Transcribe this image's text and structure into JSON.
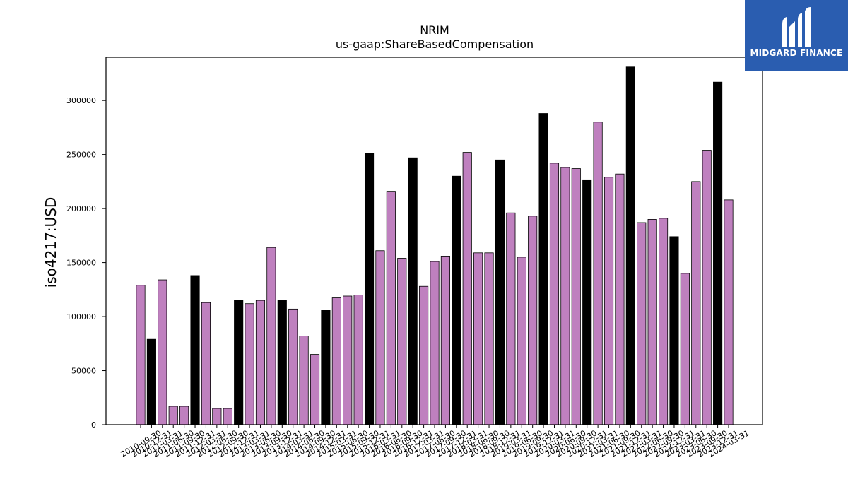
{
  "chart_data": {
    "type": "bar",
    "title": "NRIM",
    "subtitle": "us-gaap:ShareBasedCompensation",
    "ylabel": "iso4217:USD",
    "xlabel": "",
    "ylim": [
      0,
      340000
    ],
    "yticks": [
      0,
      50000,
      100000,
      150000,
      200000,
      250000,
      300000
    ],
    "ytick_labels": [
      "0",
      "50000",
      "100000",
      "150000",
      "200000",
      "250000",
      "300000"
    ],
    "grid": false,
    "colors": {
      "quarter": "#bf80bf",
      "fiscal_year_end": "#000000"
    },
    "categories": [
      "2010-09-30",
      "2010-12-31",
      "2011-03-31",
      "2011-06-30",
      "2011-09-30",
      "2011-12-31",
      "2012-03-31",
      "2012-06-30",
      "2012-09-30",
      "2012-12-31",
      "2013-03-31",
      "2013-06-30",
      "2013-09-30",
      "2013-12-31",
      "2014-03-31",
      "2014-06-30",
      "2014-09-30",
      "2014-12-31",
      "2015-03-31",
      "2015-06-30",
      "2015-09-30",
      "2015-12-31",
      "2016-03-31",
      "2016-06-30",
      "2016-09-30",
      "2016-12-31",
      "2017-03-31",
      "2017-06-30",
      "2017-09-30",
      "2017-12-31",
      "2018-03-31",
      "2018-06-30",
      "2018-09-30",
      "2018-12-31",
      "2019-03-31",
      "2019-06-30",
      "2019-09-30",
      "2019-12-31",
      "2020-03-31",
      "2020-06-30",
      "2020-09-30",
      "2020-12-31",
      "2021-03-31",
      "2021-06-30",
      "2021-09-30",
      "2021-12-31",
      "2022-03-31",
      "2022-06-30",
      "2022-09-30",
      "2022-12-31",
      "2023-03-31",
      "2023-06-30",
      "2023-09-30",
      "2023-12-31",
      "2024-03-31"
    ],
    "values": [
      129000,
      79000,
      134000,
      17000,
      17000,
      138000,
      113000,
      15000,
      15000,
      115000,
      112000,
      115000,
      164000,
      115000,
      107000,
      82000,
      65000,
      106000,
      118000,
      119000,
      120000,
      251000,
      161000,
      216000,
      154000,
      247000,
      128000,
      151000,
      156000,
      230000,
      252000,
      159000,
      159000,
      245000,
      196000,
      155000,
      193000,
      288000,
      242000,
      238000,
      237000,
      226000,
      280000,
      229000,
      232000,
      331000,
      187000,
      190000,
      191000,
      174000,
      140000,
      225000,
      254000,
      317000,
      208000
    ],
    "highlighted": [
      false,
      true,
      false,
      false,
      false,
      true,
      false,
      false,
      false,
      true,
      false,
      false,
      false,
      true,
      false,
      false,
      false,
      true,
      false,
      false,
      false,
      true,
      false,
      false,
      false,
      true,
      false,
      false,
      false,
      true,
      false,
      false,
      false,
      true,
      false,
      false,
      false,
      true,
      false,
      false,
      false,
      true,
      false,
      false,
      false,
      true,
      false,
      false,
      false,
      true,
      false,
      false,
      false,
      true,
      false
    ]
  },
  "logo": {
    "text": "MIDGARD FINANCE",
    "icon": "midgard-logo-icon"
  }
}
